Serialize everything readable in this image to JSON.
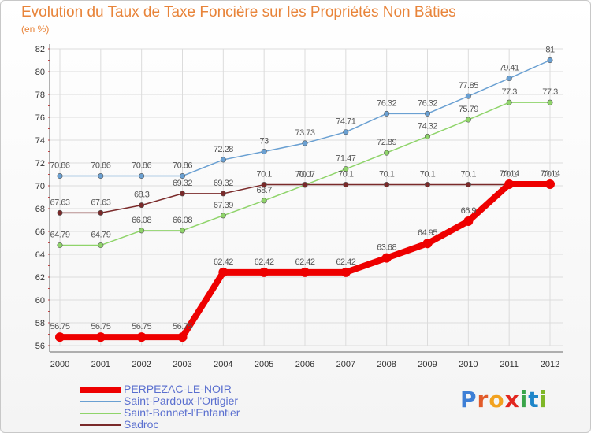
{
  "title": "Evolution du Taux de Taxe Foncière sur les Propriétés Non Bâties",
  "subtitle": "(en %)",
  "logo": "Proxiti",
  "chart_data": {
    "type": "line",
    "title": "Evolution du Taux de Taxe Foncière sur les Propriétés Non Bâties",
    "ylabel": "(en %)",
    "xlabel": "",
    "x": [
      2000,
      2001,
      2002,
      2003,
      2004,
      2005,
      2006,
      2007,
      2008,
      2009,
      2010,
      2011,
      2012
    ],
    "ylim": [
      56,
      82
    ],
    "yticks": [
      56,
      58,
      60,
      62,
      64,
      66,
      68,
      70,
      72,
      74,
      76,
      78,
      80,
      82
    ],
    "grid": true,
    "legend_position": "bottom-left",
    "series": [
      {
        "name": "PERPEZAC-LE-NOIR",
        "color": "#ee0000",
        "values": [
          56.75,
          56.75,
          56.75,
          56.75,
          62.42,
          62.42,
          62.42,
          62.42,
          63.68,
          64.95,
          66.9,
          70.14,
          70.14
        ],
        "labels": [
          "56.75",
          "56.75",
          "56.75",
          "56.75",
          "62.42",
          "62.42",
          "62.42",
          "62.42",
          "63.68",
          "64.95",
          "66.9",
          "70.14",
          "70.14"
        ]
      },
      {
        "name": "Saint-Pardoux-l'Ortigier",
        "color": "#6aa0d2",
        "values": [
          70.86,
          70.86,
          70.86,
          70.86,
          72.28,
          73,
          73.73,
          74.71,
          76.32,
          76.32,
          77.85,
          79.41,
          81
        ],
        "labels": [
          "70.86",
          "70.86",
          "70.86",
          "70.86",
          "72.28",
          "73",
          "73.73",
          "74.71",
          "76.32",
          "76.32",
          "77.85",
          "79.41",
          "81"
        ]
      },
      {
        "name": "Saint-Bonnet-l'Enfantier",
        "color": "#8fd46a",
        "values": [
          64.79,
          64.79,
          66.08,
          66.08,
          67.39,
          68.7,
          70.07,
          71.47,
          72.89,
          74.32,
          75.79,
          77.3,
          77.3
        ],
        "labels": [
          "64.79",
          "64.79",
          "66.08",
          "66.08",
          "67.39",
          "68.7",
          "70.07",
          "71.47",
          "72.89",
          "74.32",
          "75.79",
          "77.3",
          "77.3"
        ]
      },
      {
        "name": "Sadroc",
        "color": "#7a2a2a",
        "values": [
          67.63,
          67.63,
          68.3,
          69.32,
          69.32,
          70.1,
          70.1,
          70.1,
          70.1,
          70.1,
          70.1,
          70.1,
          70.1
        ],
        "labels": [
          "67.63",
          "67.63",
          "68.3",
          "69.32",
          "69.32",
          "70.1",
          "70.1",
          "70.1",
          "70.1",
          "70.1",
          "70.1",
          "70.1",
          "70.1"
        ]
      }
    ]
  }
}
